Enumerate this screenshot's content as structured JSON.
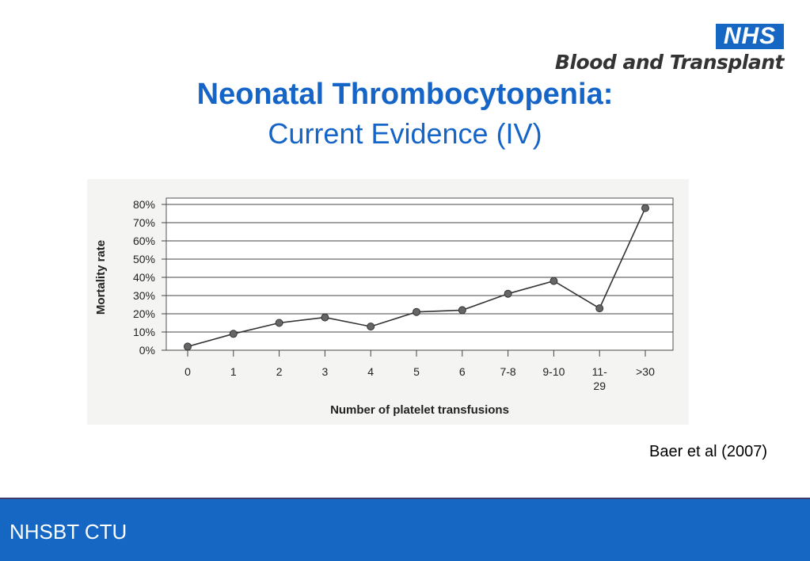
{
  "logo": {
    "badge": "NHS",
    "text": "Blood and Transplant"
  },
  "slide": {
    "title": "Neonatal Thrombocytopenia:",
    "subtitle": "Current Evidence (IV)",
    "citation": "Baer et al (2007)"
  },
  "footer": {
    "label": "NHSBT CTU"
  },
  "colors": {
    "brand_blue": "#1667c4",
    "title_blue": "#1565c8"
  },
  "chart_data": {
    "type": "line",
    "categories": [
      "0",
      "1",
      "2",
      "3",
      "4",
      "5",
      "6",
      "7-8",
      "9-10",
      "11-\n29",
      ">30"
    ],
    "values": [
      2,
      9,
      15,
      18,
      13,
      21,
      22,
      31,
      38,
      23,
      78
    ],
    "xlabel": "Number of platelet transfusions",
    "ylabel": "Mortality rate",
    "yticks": [
      "0%",
      "10%",
      "20%",
      "30%",
      "40%",
      "50%",
      "60%",
      "70%",
      "80%"
    ],
    "ylim": [
      0,
      80
    ],
    "grid": true
  }
}
